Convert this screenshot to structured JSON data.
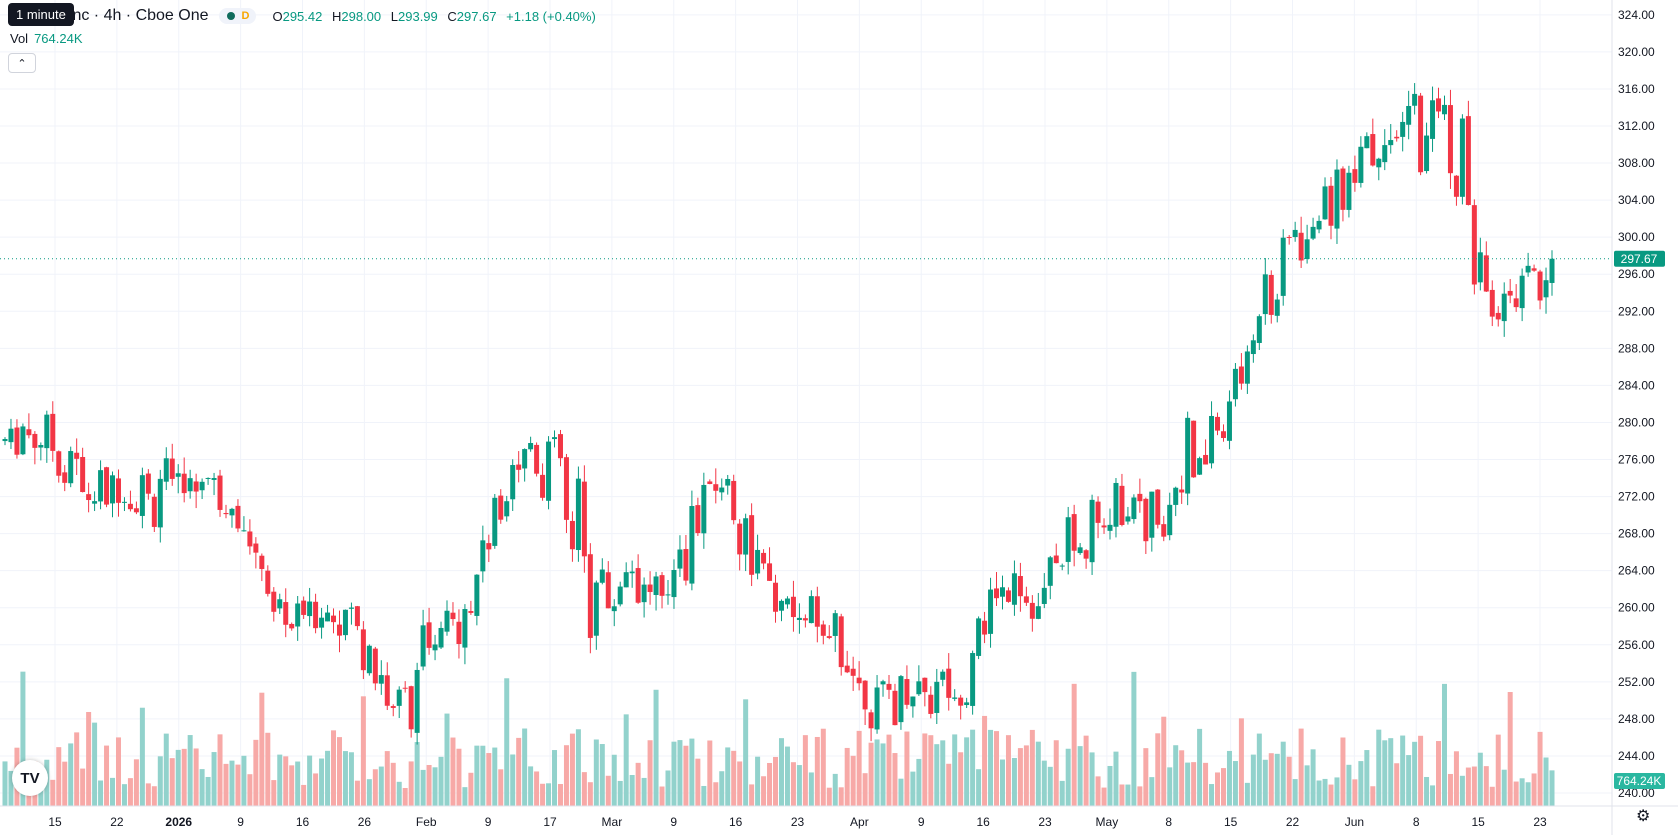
{
  "legend": {
    "title": "Inc · 4h · Cboe One",
    "tooltip": "1 minute",
    "d_badge": "D",
    "o_key": "O",
    "o_val": "295.42",
    "h_key": "H",
    "h_val": "298.00",
    "l_key": "L",
    "l_val": "293.99",
    "c_key": "C",
    "c_val": "297.67",
    "change": "+1.18 (+0.40%)",
    "vol_key": "Vol",
    "vol_val": "764.24K",
    "collapse_icon": "chevron-up-icon",
    "logo_text": "TV",
    "settings_icon": "gear-icon"
  },
  "colors": {
    "up": "#089981",
    "down": "#f23645",
    "vol_up": "#92d2cc",
    "vol_down": "#f7a9a7",
    "grid": "#f0f3fa"
  },
  "chart_data": {
    "type": "candlestick",
    "interval": "4h",
    "y_axis": {
      "ticks": [
        "240.00",
        "244.00",
        "248.00",
        "252.00",
        "256.00",
        "260.00",
        "264.00",
        "268.00",
        "272.00",
        "276.00",
        "280.00",
        "284.00",
        "288.00",
        "292.00",
        "296.00",
        "300.00",
        "304.00",
        "308.00",
        "312.00",
        "316.00",
        "320.00",
        "324.00"
      ],
      "range": [
        238.6,
        325.6
      ],
      "last_price_label": "297.67",
      "last_price": 297.67,
      "volume_label": "764.24K"
    },
    "x_axis": {
      "ticks": [
        "15",
        "22",
        "2026",
        "9",
        "16",
        "26",
        "Feb",
        "9",
        "17",
        "Mar",
        "9",
        "16",
        "23",
        "Apr",
        "9",
        "16",
        "23",
        "May",
        "8",
        "15",
        "22",
        "Jun",
        "8",
        "15",
        "23"
      ],
      "bold_ticks": [
        "2026"
      ]
    },
    "grid": true,
    "path": [
      [
        278,
        278
      ],
      [
        280,
        278
      ],
      [
        277,
        278
      ],
      [
        278,
        280
      ],
      [
        279,
        274
      ],
      [
        272,
        274
      ],
      [
        275,
        272
      ],
      [
        273,
        271
      ],
      [
        271,
        273
      ],
      [
        274,
        272
      ],
      [
        274,
        270
      ],
      [
        272,
        275
      ],
      [
        273,
        274
      ],
      [
        275,
        273
      ],
      [
        272,
        273
      ],
      [
        273,
        271
      ],
      [
        270,
        267
      ],
      [
        266,
        262
      ],
      [
        262,
        258
      ],
      [
        258,
        257
      ],
      [
        259,
        260
      ],
      [
        260,
        259
      ],
      [
        259,
        259
      ],
      [
        261,
        258
      ],
      [
        259,
        253
      ],
      [
        253,
        249
      ],
      [
        249,
        247
      ],
      [
        247,
        255
      ],
      [
        255,
        259
      ],
      [
        258,
        255
      ],
      [
        256,
        258
      ],
      [
        259,
        264
      ],
      [
        265,
        270
      ],
      [
        270,
        274
      ],
      [
        275,
        278
      ],
      [
        278,
        278
      ],
      [
        278,
        272
      ],
      [
        272,
        276
      ],
      [
        276,
        264
      ],
      [
        264,
        257
      ],
      [
        258,
        264
      ],
      [
        265,
        263
      ],
      [
        262,
        264
      ],
      [
        265,
        262
      ],
      [
        261,
        258
      ],
      [
        259,
        268
      ],
      [
        268,
        274
      ],
      [
        274,
        275
      ],
      [
        275,
        272
      ],
      [
        272,
        266
      ],
      [
        266,
        262
      ],
      [
        262,
        261
      ],
      [
        261,
        258
      ],
      [
        259,
        257
      ],
      [
        257,
        261
      ],
      [
        262,
        255
      ],
      [
        255,
        251
      ],
      [
        252,
        251
      ],
      [
        250,
        247
      ],
      [
        247,
        251
      ],
      [
        251,
        254
      ],
      [
        252,
        252
      ],
      [
        253,
        248
      ],
      [
        248,
        251
      ],
      [
        251,
        253
      ],
      [
        253,
        262
      ],
      [
        262,
        266
      ],
      [
        266,
        262
      ],
      [
        261,
        260
      ],
      [
        261,
        259
      ],
      [
        259,
        266
      ],
      [
        266,
        272
      ],
      [
        272,
        266
      ],
      [
        266,
        268
      ],
      [
        268,
        274
      ],
      [
        274,
        272
      ],
      [
        272,
        268
      ],
      [
        268,
        270
      ],
      [
        270,
        274
      ],
      [
        274,
        282
      ],
      [
        282,
        276
      ],
      [
        276,
        278
      ],
      [
        278,
        288
      ],
      [
        287,
        292
      ],
      [
        292,
        298
      ],
      [
        298,
        295
      ],
      [
        296,
        302
      ],
      [
        302,
        300
      ],
      [
        300,
        304
      ],
      [
        304,
        310
      ],
      [
        311,
        308
      ],
      [
        308,
        311
      ],
      [
        311,
        312
      ],
      [
        312,
        308
      ],
      [
        308,
        315
      ],
      [
        315,
        311
      ],
      [
        311,
        313
      ],
      [
        313,
        300
      ],
      [
        300,
        290
      ],
      [
        290,
        293
      ],
      [
        293,
        295
      ],
      [
        295,
        290
      ],
      [
        290,
        297
      ],
      [
        296,
        298
      ]
    ]
  }
}
